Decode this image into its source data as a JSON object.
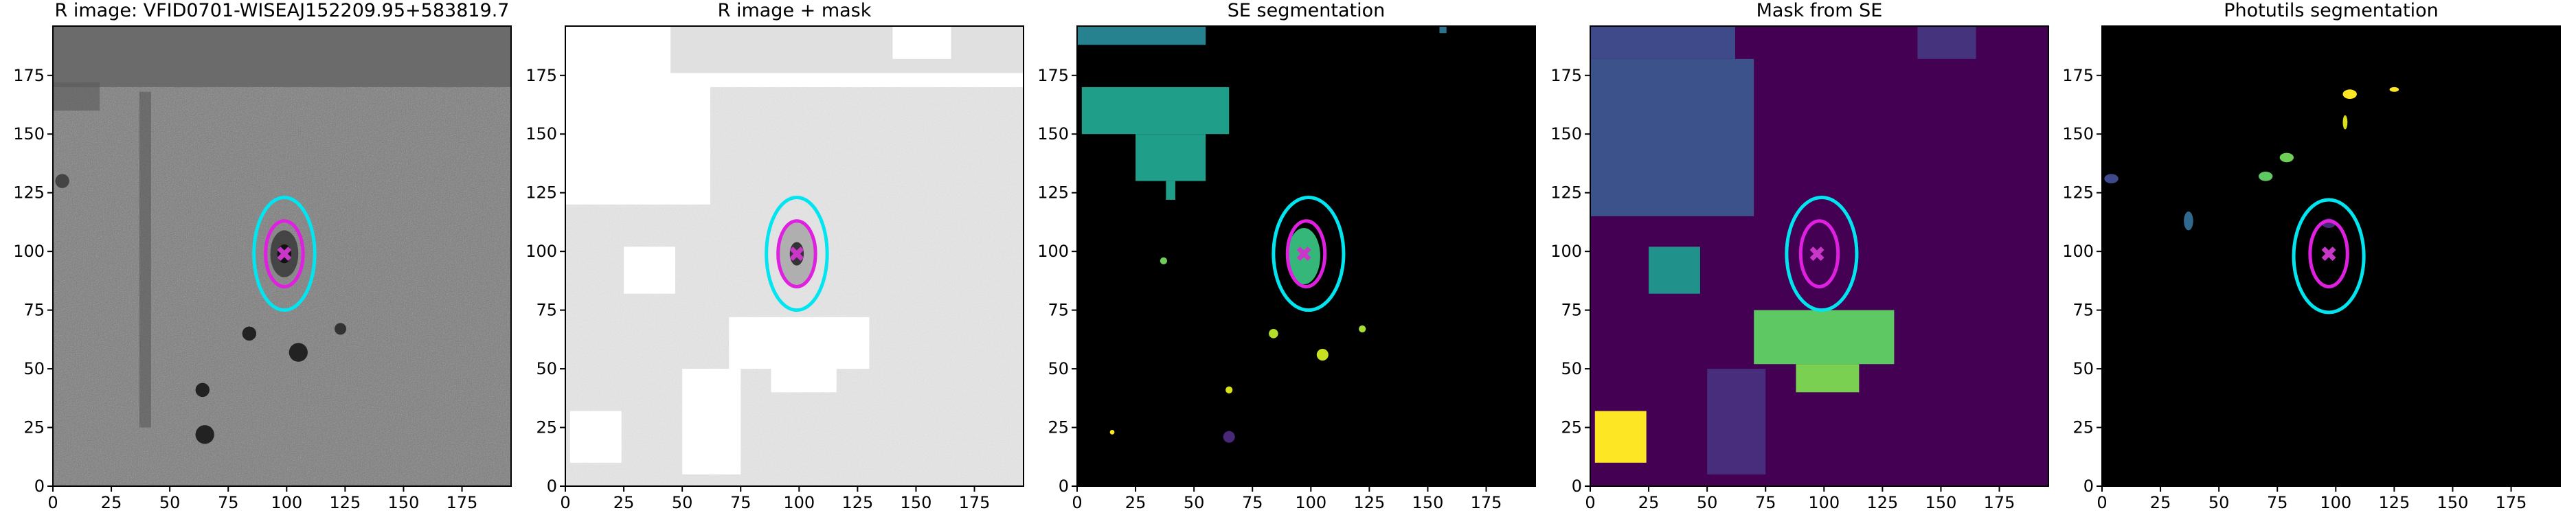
{
  "chart_data": [
    {
      "type": "image",
      "title": "R image: VFID0701-WISEAJ152209.95+583819.7",
      "xlim": [
        0,
        196
      ],
      "ylim": [
        0,
        196
      ],
      "xticks": [
        0,
        25,
        50,
        75,
        100,
        125,
        150,
        175
      ],
      "yticks": [
        0,
        25,
        50,
        75,
        100,
        125,
        150,
        175
      ],
      "marker": {
        "x": 99,
        "y": 99,
        "color": "#c837c8"
      },
      "ellipses": [
        {
          "color": "#00e5f0",
          "cx": 99,
          "cy": 99,
          "rx": 13,
          "ry": 24
        },
        {
          "color": "#e020e0",
          "cx": 99,
          "cy": 99,
          "rx": 8,
          "ry": 14
        }
      ]
    },
    {
      "type": "image",
      "title": "R image + mask",
      "xlim": [
        0,
        196
      ],
      "ylim": [
        0,
        196
      ],
      "xticks": [
        0,
        25,
        50,
        75,
        100,
        125,
        150,
        175
      ],
      "yticks": [
        0,
        25,
        50,
        75,
        100,
        125,
        150,
        175
      ],
      "marker": {
        "x": 99,
        "y": 99,
        "color": "#c837c8"
      },
      "ellipses": [
        {
          "color": "#00e5f0",
          "cx": 99,
          "cy": 99,
          "rx": 13,
          "ry": 24
        },
        {
          "color": "#e020e0",
          "cx": 99,
          "cy": 99,
          "rx": 8,
          "ry": 14
        }
      ]
    },
    {
      "type": "image",
      "title": "SE segmentation",
      "xlim": [
        0,
        196
      ],
      "ylim": [
        0,
        196
      ],
      "xticks": [
        0,
        25,
        50,
        75,
        100,
        125,
        150,
        175
      ],
      "yticks": [
        0,
        25,
        50,
        75,
        100,
        125,
        150,
        175
      ],
      "marker": {
        "x": 97,
        "y": 99,
        "color": "#c837c8"
      },
      "ellipses": [
        {
          "color": "#00e5f0",
          "cx": 99,
          "cy": 99,
          "rx": 15,
          "ry": 24
        },
        {
          "color": "#e020e0",
          "cx": 98,
          "cy": 99,
          "rx": 8,
          "ry": 14
        }
      ]
    },
    {
      "type": "image",
      "title": "Mask from SE",
      "xlim": [
        0,
        196
      ],
      "ylim": [
        0,
        196
      ],
      "xticks": [
        0,
        25,
        50,
        75,
        100,
        125,
        150,
        175
      ],
      "yticks": [
        0,
        25,
        50,
        75,
        100,
        125,
        150,
        175
      ],
      "marker": {
        "x": 97,
        "y": 99,
        "color": "#c837c8"
      },
      "ellipses": [
        {
          "color": "#00e5f0",
          "cx": 99,
          "cy": 99,
          "rx": 15,
          "ry": 24
        },
        {
          "color": "#e020e0",
          "cx": 98,
          "cy": 99,
          "rx": 8,
          "ry": 14
        }
      ]
    },
    {
      "type": "image",
      "title": "Photutils segmentation",
      "xlim": [
        0,
        196
      ],
      "ylim": [
        0,
        196
      ],
      "xticks": [
        0,
        25,
        50,
        75,
        100,
        125,
        150,
        175
      ],
      "yticks": [
        0,
        25,
        50,
        75,
        100,
        125,
        150,
        175
      ],
      "marker": {
        "x": 97,
        "y": 99,
        "color": "#c837c8"
      },
      "ellipses": [
        {
          "color": "#00e5f0",
          "cx": 97,
          "cy": 98,
          "rx": 15,
          "ry": 24
        },
        {
          "color": "#e020e0",
          "cx": 97,
          "cy": 99,
          "rx": 8,
          "ry": 14
        }
      ]
    }
  ]
}
